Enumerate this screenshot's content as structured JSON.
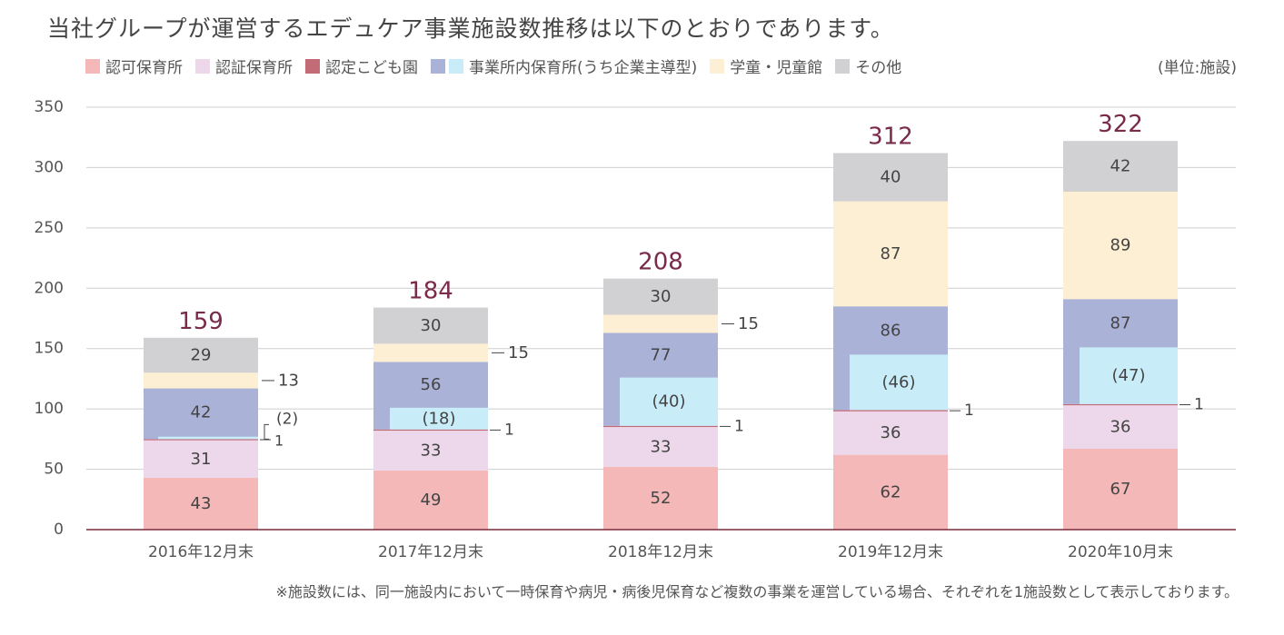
{
  "title": "当社グループが運営するエデュケア事業施設数推移は以下のとおりであります。",
  "unit_label": "(単位:施設)",
  "footnote": "※施設数には、同一施設内において一時保育や病児・病後児保育など複数の事業を運営している場合、それぞれを1施設数として表示しております。",
  "legend": [
    {
      "label": "認可保育所",
      "colors": [
        "#f4b8b8"
      ]
    },
    {
      "label": "認証保育所",
      "colors": [
        "#ecd8ea"
      ]
    },
    {
      "label": "認定こども園",
      "colors": [
        "#c46b78"
      ]
    },
    {
      "label": "事業所内保育所(うち企業主導型)",
      "colors": [
        "#aab2d8",
        "#c8ecf8"
      ]
    },
    {
      "label": "学童・児童館",
      "colors": [
        "#fdefd3"
      ]
    },
    {
      "label": "その他",
      "colors": [
        "#d1d1d3"
      ]
    }
  ],
  "chart_data": {
    "type": "bar",
    "stacked": true,
    "categories": [
      "2016年12月末",
      "2017年12月末",
      "2018年12月末",
      "2019年12月末",
      "2020年10月末"
    ],
    "ylim": [
      0,
      350
    ],
    "yticks": [
      0,
      50,
      100,
      150,
      200,
      250,
      300,
      350
    ],
    "series": [
      {
        "name": "認可保育所",
        "color": "#f4b8b8",
        "values": [
          43,
          49,
          52,
          62,
          67
        ]
      },
      {
        "name": "認証保育所",
        "color": "#ecd8ea",
        "values": [
          31,
          33,
          33,
          36,
          36
        ]
      },
      {
        "name": "認定こども園",
        "color": "#c46b78",
        "values": [
          1,
          1,
          1,
          1,
          1
        ]
      },
      {
        "name": "事業所内保育所",
        "color": "#aab2d8",
        "values": [
          42,
          56,
          77,
          86,
          87
        ]
      },
      {
        "name": "学童・児童館",
        "color": "#fdefd3",
        "values": [
          13,
          15,
          15,
          87,
          89
        ]
      },
      {
        "name": "その他",
        "color": "#d1d1d3",
        "values": [
          29,
          30,
          30,
          40,
          42
        ]
      }
    ],
    "subseries": {
      "name": "うち企業主導型",
      "parent": "事業所内保育所",
      "color": "#c8ecf8",
      "values": [
        2,
        18,
        40,
        46,
        47
      ]
    },
    "totals": [
      159,
      184,
      208,
      312,
      322
    ],
    "segment_labels": [
      [
        "43",
        "31",
        "1",
        "42",
        "13",
        "29"
      ],
      [
        "49",
        "33",
        "1",
        "56",
        "15",
        "30"
      ],
      [
        "52",
        "33",
        "1",
        "77",
        "15",
        "30"
      ],
      [
        "62",
        "36",
        "1",
        "86",
        "87",
        "40"
      ],
      [
        "67",
        "36",
        "1",
        "87",
        "89",
        "42"
      ]
    ],
    "subseries_labels": [
      "(2)",
      "(18)",
      "(40)",
      "(46)",
      "(47)"
    ],
    "total_color": "#7a2a4a"
  }
}
